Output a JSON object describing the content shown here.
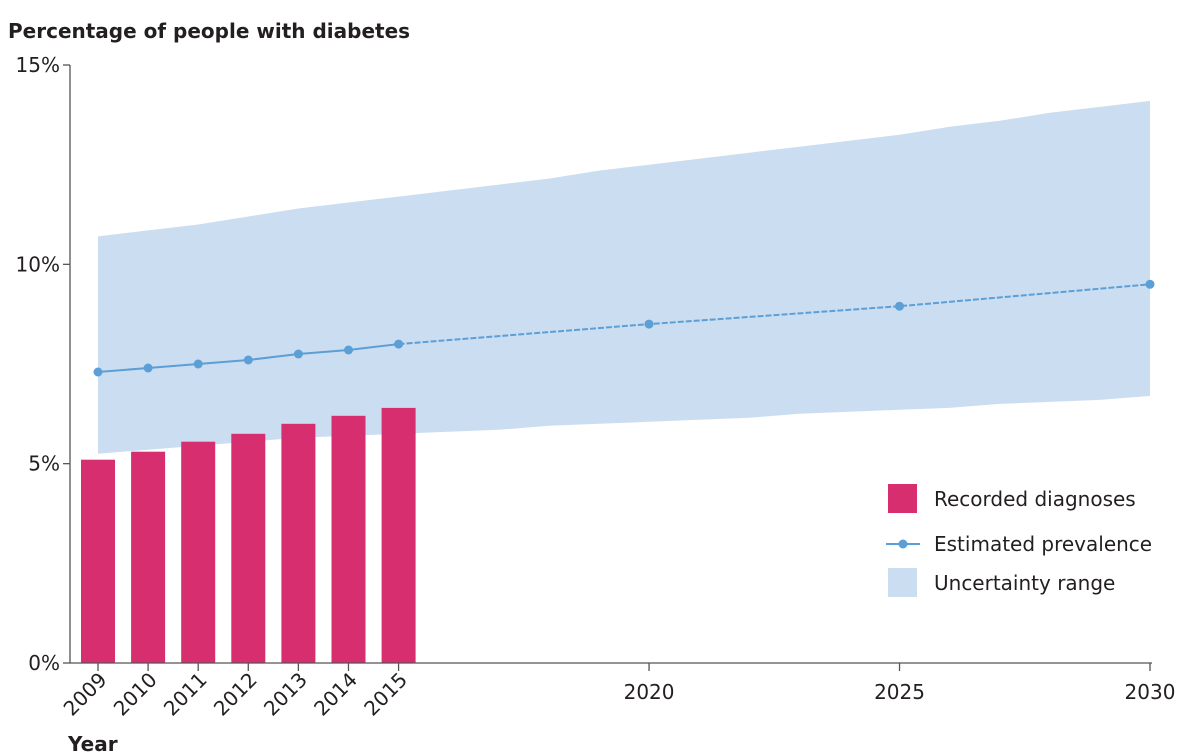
{
  "chart_data": {
    "type": "bar",
    "title": "Percentage of people with diabetes",
    "xlabel": "Year",
    "ylabel": "",
    "ylim": [
      0,
      15
    ],
    "y_ticks": [
      {
        "value": 0,
        "label": "0%"
      },
      {
        "value": 5,
        "label": "5%"
      },
      {
        "value": 10,
        "label": "10%"
      },
      {
        "value": 15,
        "label": "15%"
      }
    ],
    "x_ticks": [
      {
        "value": 2009,
        "label": "2009",
        "rotated": true
      },
      {
        "value": 2010,
        "label": "2010",
        "rotated": true
      },
      {
        "value": 2011,
        "label": "2011",
        "rotated": true
      },
      {
        "value": 2012,
        "label": "2012",
        "rotated": true
      },
      {
        "value": 2013,
        "label": "2013",
        "rotated": true
      },
      {
        "value": 2014,
        "label": "2014",
        "rotated": true
      },
      {
        "value": 2015,
        "label": "2015",
        "rotated": true
      },
      {
        "value": 2020,
        "label": "2020",
        "rotated": false
      },
      {
        "value": 2025,
        "label": "2025",
        "rotated": false
      },
      {
        "value": 2030,
        "label": "2030",
        "rotated": false
      }
    ],
    "xlim": [
      2008.5,
      2030
    ],
    "grid": false,
    "legend_position": "bottom-right",
    "series": [
      {
        "name": "Recorded diagnoses",
        "kind": "bar",
        "color": "#d62e6e",
        "x": [
          2009,
          2010,
          2011,
          2012,
          2013,
          2014,
          2015
        ],
        "values": [
          5.1,
          5.3,
          5.55,
          5.75,
          6.0,
          6.2,
          6.4
        ]
      },
      {
        "name": "Estimated prevalence",
        "kind": "line",
        "color": "#5b9fd6",
        "x": [
          2009,
          2010,
          2011,
          2012,
          2013,
          2014,
          2015,
          2020,
          2025,
          2030
        ],
        "values": [
          7.3,
          7.4,
          7.5,
          7.6,
          7.75,
          7.85,
          8.0,
          8.5,
          8.95,
          9.5
        ],
        "dashed_after": 2015
      },
      {
        "name": "Uncertainty range",
        "kind": "area",
        "color": "#cbddf0",
        "x": [
          2009,
          2010,
          2011,
          2012,
          2013,
          2014,
          2015,
          2016,
          2017,
          2018,
          2019,
          2020,
          2021,
          2022,
          2023,
          2024,
          2025,
          2026,
          2027,
          2028,
          2029,
          2030
        ],
        "upper": [
          10.7,
          10.85,
          11.0,
          11.2,
          11.4,
          11.55,
          11.7,
          11.85,
          12.0,
          12.15,
          12.35,
          12.5,
          12.65,
          12.8,
          12.95,
          13.1,
          13.25,
          13.45,
          13.6,
          13.8,
          13.95,
          14.1
        ],
        "lower": [
          5.25,
          5.35,
          5.45,
          5.55,
          5.65,
          5.7,
          5.75,
          5.8,
          5.85,
          5.95,
          6.0,
          6.05,
          6.1,
          6.15,
          6.25,
          6.3,
          6.35,
          6.4,
          6.5,
          6.55,
          6.6,
          6.7
        ]
      }
    ]
  }
}
